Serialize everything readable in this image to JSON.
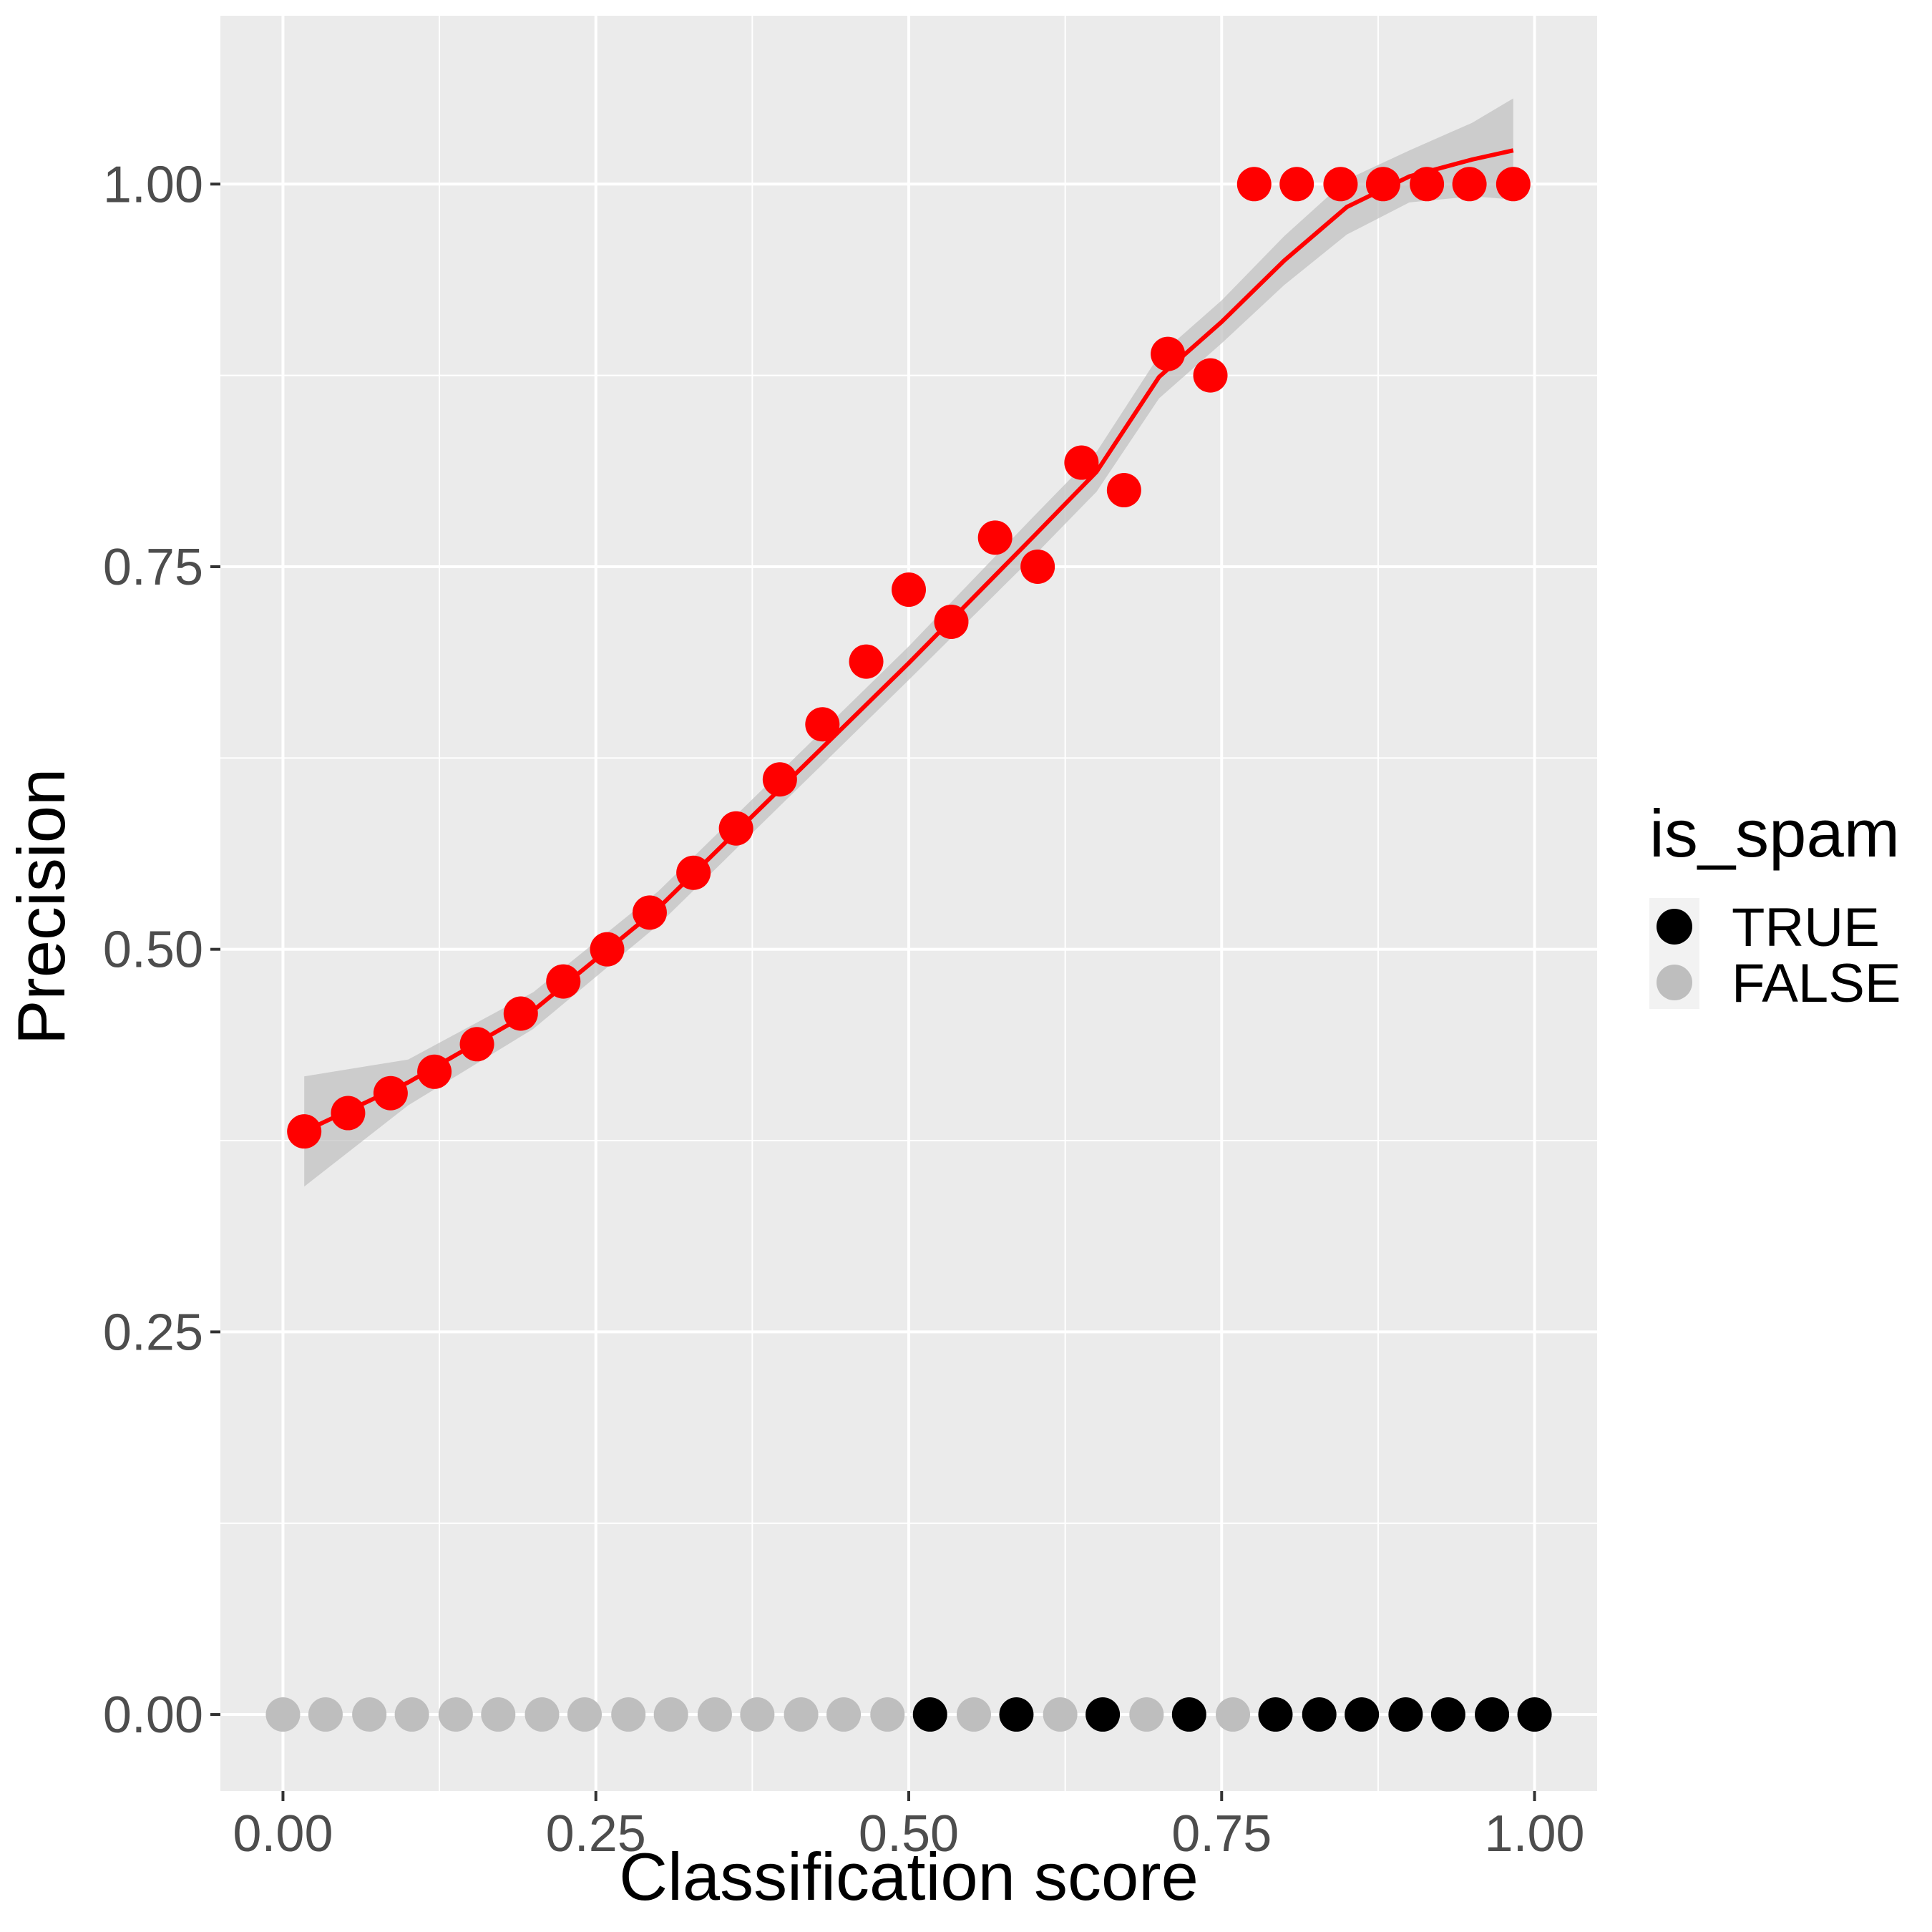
{
  "chart_data": {
    "type": "scatter",
    "title": "",
    "xlabel": "Classification score",
    "ylabel": "Precision",
    "xlim": [
      -0.05,
      1.05
    ],
    "ylim": [
      -0.05,
      1.11
    ],
    "x_ticks": [
      "0.00",
      "0.25",
      "0.50",
      "0.75",
      "1.00"
    ],
    "y_ticks": [
      "0.00",
      "0.25",
      "0.50",
      "0.75",
      "1.00"
    ],
    "grid": true,
    "legend": {
      "title": "is_spam",
      "position": "right",
      "entries": [
        {
          "label": "TRUE",
          "color": "#000000"
        },
        {
          "label": "FALSE",
          "color": "#bebebe"
        }
      ]
    },
    "colors": {
      "panel": "#ebebeb",
      "grid": "#ffffff",
      "precision_points": "#ff0000",
      "smooth_line": "#ff0000",
      "ribbon": "#bfbfbf"
    },
    "precision_points": {
      "x": [
        0.017,
        0.052,
        0.086,
        0.121,
        0.155,
        0.19,
        0.224,
        0.259,
        0.293,
        0.328,
        0.362,
        0.397,
        0.431,
        0.466,
        0.5,
        0.534,
        0.569,
        0.603,
        0.638,
        0.672,
        0.707,
        0.741,
        0.776,
        0.81,
        0.845,
        0.879,
        0.914,
        0.948,
        0.983
      ],
      "y": [
        0.381,
        0.393,
        0.406,
        0.42,
        0.438,
        0.458,
        0.479,
        0.5,
        0.524,
        0.55,
        0.579,
        0.611,
        0.647,
        0.688,
        0.735,
        0.714,
        0.769,
        0.75,
        0.818,
        0.8,
        0.889,
        0.875,
        1.0,
        1.0,
        1.0,
        1.0,
        1.0,
        1.0,
        1.0
      ]
    },
    "smooth": {
      "x": [
        0.017,
        0.1,
        0.2,
        0.3,
        0.4,
        0.5,
        0.6,
        0.65,
        0.7,
        0.75,
        0.8,
        0.85,
        0.9,
        0.95,
        0.983
      ],
      "y": [
        0.381,
        0.413,
        0.46,
        0.527,
        0.607,
        0.687,
        0.77,
        0.812,
        0.874,
        0.91,
        0.95,
        0.985,
        1.005,
        1.016,
        1.022
      ],
      "ci_lower": [
        0.345,
        0.398,
        0.448,
        0.516,
        0.596,
        0.676,
        0.757,
        0.799,
        0.86,
        0.896,
        0.934,
        0.967,
        0.988,
        0.992,
        0.99
      ],
      "ci_upper": [
        0.417,
        0.428,
        0.472,
        0.538,
        0.618,
        0.698,
        0.783,
        0.825,
        0.888,
        0.924,
        0.966,
        1.003,
        1.022,
        1.04,
        1.056
      ]
    },
    "labels": {
      "x": [
        0.0,
        0.034,
        0.069,
        0.103,
        0.138,
        0.172,
        0.207,
        0.241,
        0.276,
        0.31,
        0.345,
        0.379,
        0.414,
        0.448,
        0.483,
        0.517,
        0.552,
        0.586,
        0.621,
        0.655,
        0.69,
        0.724,
        0.759,
        0.793,
        0.828,
        0.862,
        0.897,
        0.931,
        0.966,
        1.0
      ],
      "is_spam": [
        false,
        false,
        false,
        false,
        false,
        false,
        false,
        false,
        false,
        false,
        false,
        false,
        false,
        false,
        false,
        true,
        false,
        true,
        false,
        true,
        false,
        true,
        false,
        true,
        true,
        true,
        true,
        true,
        true,
        true
      ]
    }
  }
}
